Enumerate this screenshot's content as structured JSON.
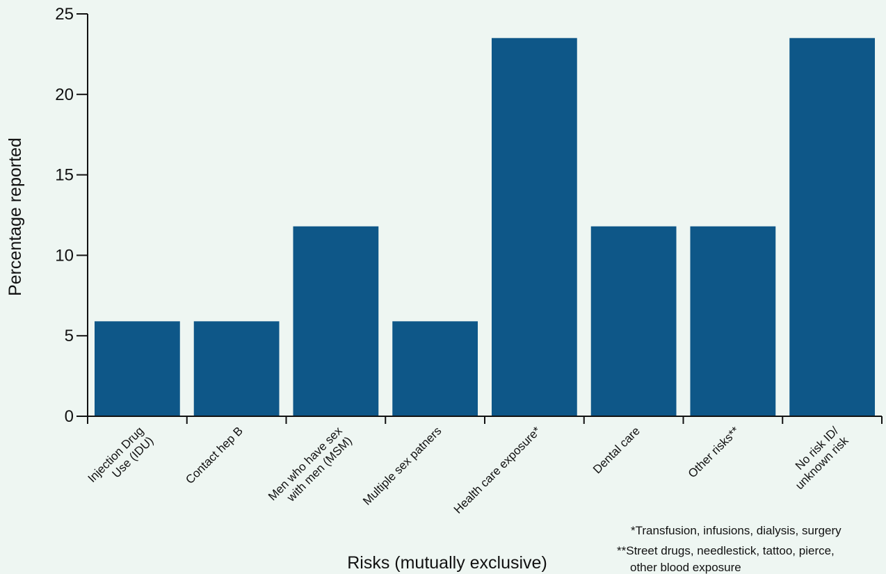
{
  "chart_data": {
    "type": "bar",
    "title": "",
    "xlabel": "Risks (mutually exclusive)",
    "ylabel": "Percentage reported",
    "ylim": [
      0,
      25
    ],
    "yticks": [
      0,
      5,
      10,
      15,
      20,
      25
    ],
    "grid": false,
    "bar_color": "#0e5788",
    "categories": [
      [
        "Injection Drug",
        "Use (IDU)"
      ],
      [
        "Contact hep B"
      ],
      [
        "Men who have sex",
        "with men (MSM)"
      ],
      [
        "Multiple sex patners"
      ],
      [
        "Health care exposure*"
      ],
      [
        "Dental care"
      ],
      [
        "Other risks**"
      ],
      [
        "No risk ID/",
        "unknown risk"
      ]
    ],
    "values": [
      5.9,
      5.9,
      11.8,
      5.9,
      23.5,
      11.8,
      11.8,
      23.5
    ],
    "footnotes": [
      "*Transfusion, infusions, dialysis, surgery",
      "**Street drugs, needlestick, tattoo, pierce,",
      "other blood exposure"
    ]
  }
}
